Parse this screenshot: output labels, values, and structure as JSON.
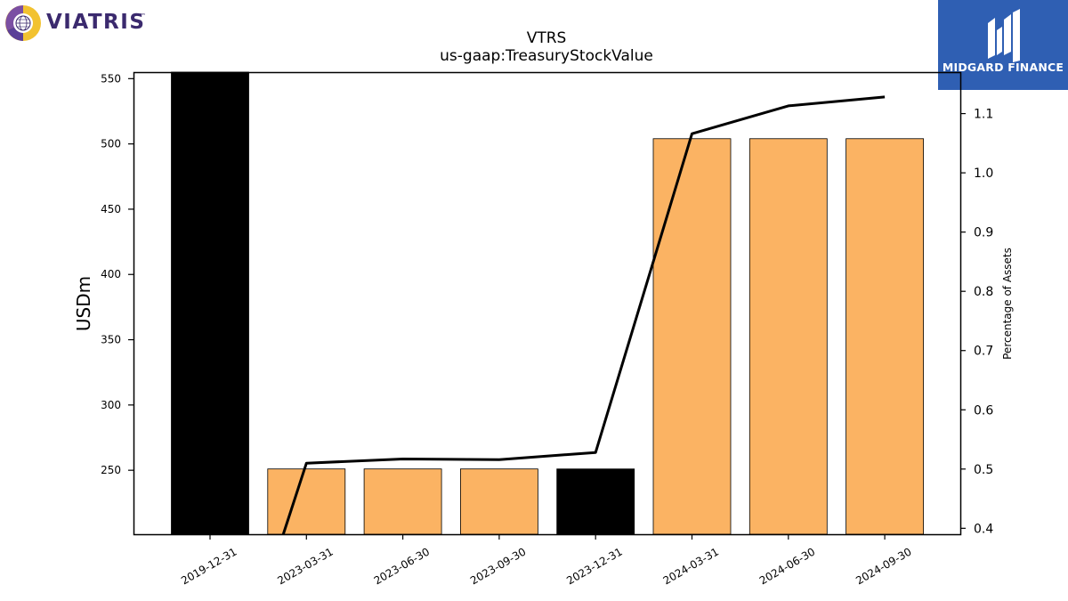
{
  "logos": {
    "left": {
      "text": "VIATRIS",
      "tm": "™"
    },
    "right": {
      "text": "MIDGARD FINANCE"
    }
  },
  "colors": {
    "bar_default": "#fbb363",
    "bar_highlight": "#000000",
    "line": "#000000",
    "axis": "#000000",
    "logo_right_bg": "#2f5fb3",
    "logo_left_text": "#3b2a6e"
  },
  "chart_data": {
    "type": "bar",
    "title": "VTRS",
    "subtitle": "us-gaap:TreasuryStockValue",
    "ylabel": "USDm",
    "y2label": "Percentage of Assets",
    "categories": [
      "2019-12-31",
      "2023-03-31",
      "2023-06-30",
      "2023-09-30",
      "2023-12-31",
      "2024-03-31",
      "2024-06-30",
      "2024-09-30"
    ],
    "series": [
      {
        "values": [
          555,
          251,
          251,
          251,
          251,
          504,
          504,
          504
        ],
        "colors": [
          "#000000",
          "#fbb363",
          "#fbb363",
          "#fbb363",
          "#000000",
          "#fbb363",
          "#fbb363",
          "#fbb363"
        ],
        "axis": "left"
      },
      {
        "type": "line",
        "values": [
          null,
          0.51,
          0.517,
          0.516,
          0.528,
          1.066,
          1.113,
          1.128
        ],
        "axis": "right"
      }
    ],
    "ylim": [
      201,
      555
    ],
    "y2lim": [
      0.39,
      1.17
    ],
    "yticks": [
      250,
      300,
      350,
      400,
      450,
      500,
      550
    ],
    "y2ticks": [
      0.4,
      0.5,
      0.6,
      0.7,
      0.8,
      0.9,
      1.0,
      1.1
    ],
    "y2ticklabels": [
      "0.4",
      "0.5",
      "0.6",
      "0.7",
      "0.8",
      "0.9",
      "1.0",
      "1.1"
    ],
    "grid": false,
    "legend": "none"
  }
}
